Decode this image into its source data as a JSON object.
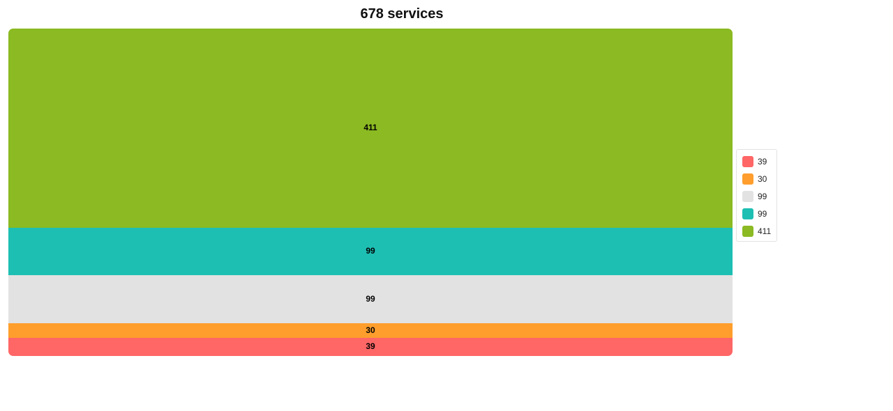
{
  "chart_data": {
    "type": "bar",
    "layout": "stacked-single-bar",
    "title": "678 services",
    "segments": [
      {
        "label": "39",
        "value": 39,
        "color": "#ff6666"
      },
      {
        "label": "30",
        "value": 30,
        "color": "#ff9e2c"
      },
      {
        "label": "99",
        "value": 99,
        "color": "#e2e2e2"
      },
      {
        "label": "99",
        "value": 99,
        "color": "#1dbfb3"
      },
      {
        "label": "411",
        "value": 411,
        "color": "#8bba22"
      }
    ],
    "total": 678,
    "legend": "right",
    "grid": false
  }
}
